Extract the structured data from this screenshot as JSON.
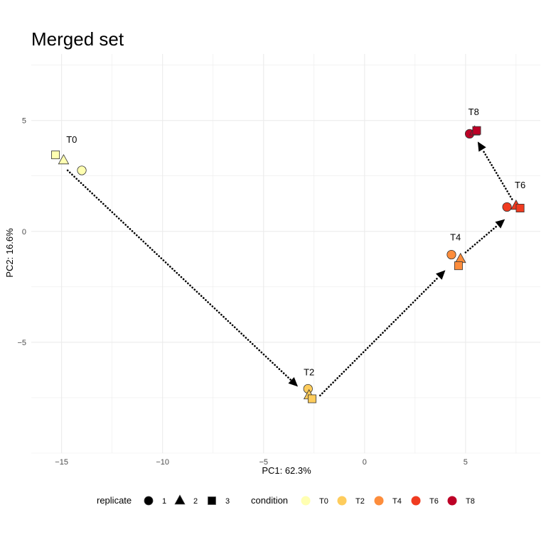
{
  "chart_data": {
    "type": "scatter",
    "title": "Merged set",
    "xlabel": "PC1: 62.3%",
    "ylabel": "PC2: 16.6%",
    "xlim": [
      -16.5,
      8.7
    ],
    "ylim": [
      -10.0,
      8.0
    ],
    "x_ticks": [
      -15,
      -10,
      -5,
      0,
      5
    ],
    "x_tick_labels": [
      "−15",
      "−10",
      "−5",
      "0",
      "5"
    ],
    "y_ticks": [
      -5,
      0,
      5
    ],
    "y_tick_labels": [
      "−5",
      "0",
      "5"
    ],
    "grid": true,
    "colors": {
      "T0": "#FFFFB2",
      "T2": "#FECC5C",
      "T4": "#FD8D3C",
      "T6": "#F03B20",
      "T8": "#BD0026"
    },
    "points": [
      {
        "condition": "T0",
        "replicate": "1",
        "x": -14.0,
        "y": 2.75
      },
      {
        "condition": "T0",
        "replicate": "2",
        "x": -14.9,
        "y": 3.2
      },
      {
        "condition": "T0",
        "replicate": "3",
        "x": -15.3,
        "y": 3.45
      },
      {
        "condition": "T2",
        "replicate": "1",
        "x": -2.8,
        "y": -7.1
      },
      {
        "condition": "T2",
        "replicate": "2",
        "x": -2.75,
        "y": -7.4
      },
      {
        "condition": "T2",
        "replicate": "3",
        "x": -2.6,
        "y": -7.55
      },
      {
        "condition": "T4",
        "replicate": "1",
        "x": 4.3,
        "y": -1.05
      },
      {
        "condition": "T4",
        "replicate": "2",
        "x": 4.75,
        "y": -1.25
      },
      {
        "condition": "T4",
        "replicate": "3",
        "x": 4.65,
        "y": -1.55
      },
      {
        "condition": "T6",
        "replicate": "1",
        "x": 7.05,
        "y": 1.1
      },
      {
        "condition": "T6",
        "replicate": "2",
        "x": 7.5,
        "y": 1.15
      },
      {
        "condition": "T6",
        "replicate": "3",
        "x": 7.7,
        "y": 1.05
      },
      {
        "condition": "T8",
        "replicate": "1",
        "x": 5.2,
        "y": 4.4
      },
      {
        "condition": "T8",
        "replicate": "2",
        "x": 5.45,
        "y": 4.5
      },
      {
        "condition": "T8",
        "replicate": "3",
        "x": 5.55,
        "y": 4.55
      }
    ],
    "labels": [
      {
        "text": "T0",
        "x": -14.5,
        "y": 4.0
      },
      {
        "text": "T2",
        "x": -2.75,
        "y": -6.5
      },
      {
        "text": "T4",
        "x": 4.5,
        "y": -0.4
      },
      {
        "text": "T6",
        "x": 7.7,
        "y": 1.95
      },
      {
        "text": "T8",
        "x": 5.4,
        "y": 5.25
      }
    ],
    "arrows": [
      {
        "from": [
          -14.7,
          2.75
        ],
        "to": [
          -3.3,
          -7.0
        ]
      },
      {
        "from": [
          -2.2,
          -7.4
        ],
        "to": [
          4.0,
          -1.75
        ]
      },
      {
        "from": [
          5.0,
          -0.95
        ],
        "to": [
          6.95,
          0.55
        ]
      },
      {
        "from": [
          7.3,
          1.45
        ],
        "to": [
          5.6,
          4.05
        ]
      }
    ],
    "legend": {
      "position": "bottom",
      "replicate": {
        "title": "replicate",
        "entries": [
          "1",
          "2",
          "3"
        ]
      },
      "condition": {
        "title": "condition",
        "entries": [
          "T0",
          "T2",
          "T4",
          "T6",
          "T8"
        ]
      }
    }
  }
}
